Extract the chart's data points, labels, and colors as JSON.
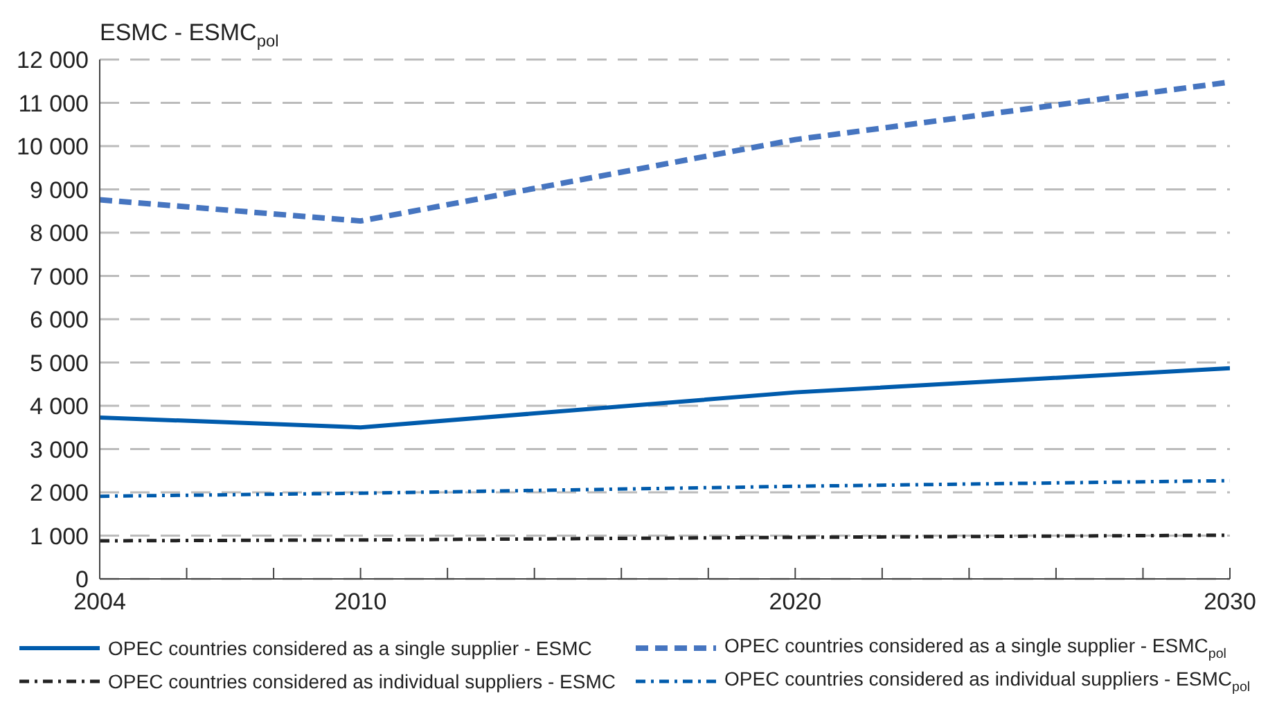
{
  "chart_data": {
    "type": "line",
    "ylabel": "ESMC - ESMC$_{pol}$",
    "x": [
      2004,
      2010,
      2020,
      2030
    ],
    "series": [
      {
        "name": "OPEC countries considered as a single supplier - ESMC",
        "color": "#005bac",
        "values": [
          3730,
          3500,
          4310,
          4870
        ],
        "line_style": "solid"
      },
      {
        "name": "OPEC countries considered as a single supplier - ESMC$_{pol}$",
        "color": "#4675c0",
        "values": [
          8760,
          8270,
          10150,
          11480
        ],
        "line_style": "dashed"
      },
      {
        "name": "OPEC countries considered as individual suppliers - ESMC",
        "color": "#222222",
        "values": [
          880,
          900,
          960,
          1010
        ],
        "line_style": "dotted"
      },
      {
        "name": "OPEC countries considered as individual suppliers - ESMC$_{pol}$",
        "color": "#005bac",
        "values": [
          1910,
          1980,
          2140,
          2270
        ],
        "line_style": "dotted"
      }
    ],
    "xlim": [
      2004,
      2030
    ],
    "xticks": [
      2004,
      {
        "value": 2006,
        "label": null
      },
      {
        "value": 2008,
        "label": null
      },
      2010,
      {
        "value": 2012,
        "label": null
      },
      {
        "value": 2014,
        "label": null
      },
      {
        "value": 2016,
        "label": null
      },
      {
        "value": 2018,
        "label": null
      },
      2020,
      {
        "value": 2022,
        "label": null
      },
      {
        "value": 2024,
        "label": null
      },
      {
        "value": 2026,
        "label": null
      },
      {
        "value": 2028,
        "label": null
      },
      2030
    ],
    "ylim": [
      0,
      12000
    ],
    "yticks": [
      0,
      {
        "value": 1000,
        "label": "1 000"
      },
      {
        "value": 2000,
        "label": "2 000"
      },
      {
        "value": 3000,
        "label": "3 000"
      },
      {
        "value": 4000,
        "label": "4 000"
      },
      {
        "value": 5000,
        "label": "5 000"
      },
      {
        "value": 6000,
        "label": "6 000"
      },
      {
        "value": 7000,
        "label": "7 000"
      },
      {
        "value": 8000,
        "label": "8 000"
      },
      {
        "value": 9000,
        "label": "9 000"
      },
      {
        "value": 10000,
        "label": "10 000"
      },
      {
        "value": 11000,
        "label": "11 000"
      },
      {
        "value": 12000,
        "label": "12 000"
      }
    ],
    "grid": "y",
    "legend": "bottom",
    "marker": "none"
  }
}
